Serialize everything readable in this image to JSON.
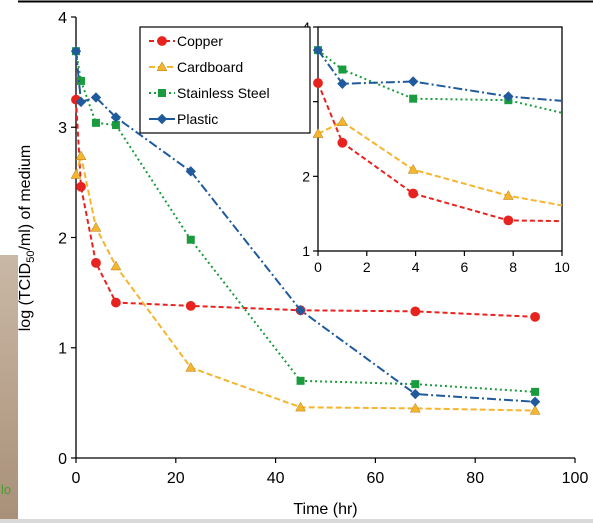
{
  "chart_data": [
    {
      "type": "line",
      "xlabel": "Time (hr)",
      "ylabel_prefix": "log (TCID",
      "ylabel_sub": "50",
      "ylabel_suffix": "/ml) of medium",
      "xlim": [
        0,
        100
      ],
      "ylim": [
        0,
        4
      ],
      "xticks": [
        0,
        20,
        40,
        60,
        80,
        100
      ],
      "yticks": [
        0,
        1,
        2,
        3,
        4
      ],
      "grid": false,
      "legend": "top-left",
      "series": [
        {
          "name": "Copper",
          "color": "#e8231f",
          "marker": "circle",
          "dash": "5,3",
          "x": [
            0,
            1,
            4,
            8,
            23,
            45,
            68,
            92
          ],
          "y": [
            3.25,
            2.46,
            1.77,
            1.41,
            1.38,
            1.34,
            1.33,
            1.28
          ]
        },
        {
          "name": "Cardboard",
          "color": "#f5b52e",
          "marker": "triangle",
          "dash": "6,3",
          "x": [
            0,
            1,
            4,
            8,
            23,
            45,
            68,
            92
          ],
          "y": [
            2.57,
            2.74,
            2.09,
            1.74,
            0.82,
            0.46,
            0.45,
            0.43
          ]
        },
        {
          "name": "Stainless Steel",
          "color": "#1a9c3e",
          "marker": "square",
          "dash": "2,3",
          "x": [
            0,
            1,
            4,
            8,
            23,
            45,
            68,
            92
          ],
          "y": [
            3.69,
            3.42,
            3.04,
            3.02,
            1.98,
            0.7,
            0.67,
            0.6
          ]
        },
        {
          "name": "Plastic",
          "color": "#1f5a9c",
          "marker": "diamond",
          "dash": "9,3,2,3",
          "x": [
            0,
            1,
            4,
            8,
            23,
            45,
            68,
            92
          ],
          "y": [
            3.69,
            3.23,
            3.27,
            3.09,
            2.6,
            1.34,
            0.58,
            0.51
          ]
        }
      ]
    },
    {
      "type": "line",
      "xlim": [
        0,
        10
      ],
      "ylim": [
        1,
        4
      ],
      "xticks": [
        0,
        2,
        4,
        6,
        8,
        10
      ],
      "yticks": [
        1,
        2,
        3,
        4
      ],
      "grid": false,
      "series": [
        {
          "name": "Copper",
          "color": "#e8231f",
          "marker": "circle",
          "dash": "5,3",
          "x": [
            0,
            1,
            3.9,
            7.8,
            10
          ],
          "y": [
            3.25,
            2.45,
            1.77,
            1.41,
            1.4
          ]
        },
        {
          "name": "Cardboard",
          "color": "#f5b52e",
          "marker": "triangle",
          "dash": "6,3",
          "x": [
            0,
            1,
            3.9,
            7.8,
            10
          ],
          "y": [
            2.57,
            2.73,
            2.09,
            1.74,
            1.61
          ]
        },
        {
          "name": "Stainless Steel",
          "color": "#1a9c3e",
          "marker": "square",
          "dash": "2,3",
          "x": [
            0,
            1,
            3.9,
            7.8,
            10
          ],
          "y": [
            3.69,
            3.43,
            3.04,
            3.02,
            2.85
          ]
        },
        {
          "name": "Plastic",
          "color": "#1f5a9c",
          "marker": "diamond",
          "dash": "9,3,2,3",
          "x": [
            0,
            1,
            3.9,
            7.8,
            10
          ],
          "y": [
            3.69,
            3.24,
            3.27,
            3.07,
            3.01
          ]
        }
      ]
    }
  ]
}
